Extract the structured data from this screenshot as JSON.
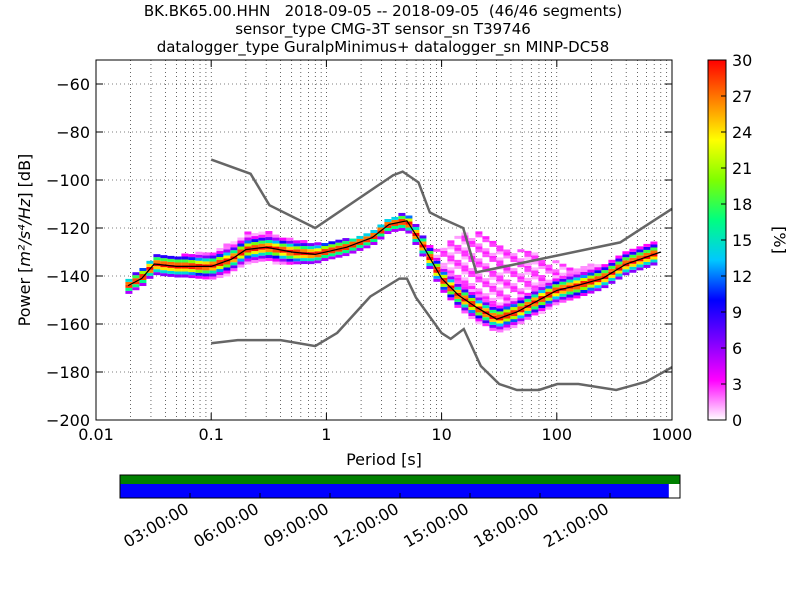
{
  "title": {
    "line1": "BK.BK65.00.HHN   2018-09-05 -- 2018-09-05  (46/46 segments)",
    "line2": "sensor_type CMG-3T sensor_sn T39746",
    "line3": "datalogger_type GuralpMinimus+ datalogger_sn MINP-DC58"
  },
  "chart_data": {
    "type": "heatmap",
    "xlabel": "Period [s]",
    "ylabel_prefix": "Power ",
    "ylabel_unit": "m²/s⁴/Hz",
    "ylabel_suffix": " [dB]",
    "xscale": "log",
    "xlim": [
      0.01,
      1000
    ],
    "ylim": [
      -200,
      -50
    ],
    "xticks": [
      {
        "v": 0.01,
        "label": "0.01"
      },
      {
        "v": 0.1,
        "label": "0.1"
      },
      {
        "v": 1,
        "label": "1"
      },
      {
        "v": 10,
        "label": "10"
      },
      {
        "v": 100,
        "label": "100"
      },
      {
        "v": 1000,
        "label": "1000"
      }
    ],
    "yticks": [
      -60,
      -80,
      -100,
      -120,
      -140,
      -160,
      -180,
      -200
    ],
    "grid": true,
    "colorbar": {
      "label": "[%]",
      "ticks": [
        0,
        3,
        6,
        9,
        12,
        15,
        18,
        21,
        24,
        27,
        30
      ],
      "range": [
        0,
        30
      ],
      "colors": [
        "#ffffff",
        "#ff00ff",
        "#7a00ff",
        "#0000ff",
        "#00c8ff",
        "#00ff80",
        "#7fff00",
        "#ffff00",
        "#ff8000",
        "#ff0000"
      ]
    },
    "nhnm": [
      [
        0.1,
        -91.5
      ],
      [
        0.22,
        -97.4
      ],
      [
        0.32,
        -110.5
      ],
      [
        0.8,
        -120
      ],
      [
        3.8,
        -98
      ],
      [
        4.6,
        -96.5
      ],
      [
        6.3,
        -101
      ],
      [
        7.9,
        -113.5
      ],
      [
        10,
        -116
      ],
      [
        15.4,
        -120
      ],
      [
        20,
        -138.5
      ],
      [
        354.8,
        -126
      ],
      [
        1000,
        -112
      ]
    ],
    "nlnm": [
      [
        0.1,
        -168
      ],
      [
        0.17,
        -166.7
      ],
      [
        0.4,
        -166.7
      ],
      [
        0.8,
        -169.2
      ],
      [
        1.24,
        -163.7
      ],
      [
        2.4,
        -148.6
      ],
      [
        4.3,
        -141.1
      ],
      [
        5,
        -141.1
      ],
      [
        6,
        -149
      ],
      [
        10,
        -163.8
      ],
      [
        12,
        -166.2
      ],
      [
        15.6,
        -162.1
      ],
      [
        21.9,
        -177.5
      ],
      [
        31.6,
        -185
      ],
      [
        45,
        -187.5
      ],
      [
        70,
        -187.5
      ],
      [
        101,
        -185
      ],
      [
        154,
        -185
      ],
      [
        328,
        -187.5
      ],
      [
        600,
        -184
      ],
      [
        1000,
        -178
      ]
    ],
    "mode": [
      [
        0.019,
        -144
      ],
      [
        0.025,
        -141
      ],
      [
        0.032,
        -135
      ],
      [
        0.05,
        -136
      ],
      [
        0.1,
        -136
      ],
      [
        0.15,
        -133
      ],
      [
        0.2,
        -129
      ],
      [
        0.3,
        -128
      ],
      [
        0.5,
        -130
      ],
      [
        0.8,
        -131
      ],
      [
        1.5,
        -128
      ],
      [
        2.5,
        -124
      ],
      [
        3.5,
        -118.5
      ],
      [
        5,
        -117
      ],
      [
        7,
        -128
      ],
      [
        10,
        -141
      ],
      [
        14,
        -148
      ],
      [
        20,
        -153
      ],
      [
        30,
        -158
      ],
      [
        45,
        -155
      ],
      [
        70,
        -150
      ],
      [
        100,
        -146
      ],
      [
        150,
        -144
      ],
      [
        250,
        -141
      ],
      [
        400,
        -135
      ],
      [
        800,
        -130
      ]
    ],
    "spread": [
      {
        "x": 0.019,
        "dn": 2,
        "up": 2
      },
      {
        "x": 0.025,
        "dn": 2,
        "up": 3
      },
      {
        "x": 0.035,
        "dn": 3,
        "up": 3
      },
      {
        "x": 0.06,
        "dn": 3,
        "up": 4
      },
      {
        "x": 0.1,
        "dn": 4,
        "up": 5
      },
      {
        "x": 0.2,
        "dn": 6,
        "up": 7
      },
      {
        "x": 0.35,
        "dn": 5,
        "up": 5
      },
      {
        "x": 0.6,
        "dn": 3,
        "up": 4
      },
      {
        "x": 1,
        "dn": 2,
        "up": 3
      },
      {
        "x": 2,
        "dn": 2,
        "up": 2
      },
      {
        "x": 4,
        "dn": 2,
        "up": 2
      },
      {
        "x": 8,
        "dn": 3,
        "up": 4
      },
      {
        "x": 15,
        "dn": 4,
        "up": 26
      },
      {
        "x": 22,
        "dn": 5,
        "up": 32
      },
      {
        "x": 40,
        "dn": 6,
        "up": 28
      },
      {
        "x": 70,
        "dn": 5,
        "up": 18
      },
      {
        "x": 120,
        "dn": 4,
        "up": 8
      },
      {
        "x": 250,
        "dn": 3,
        "up": 5
      },
      {
        "x": 800,
        "dn": 3,
        "up": 4
      }
    ],
    "timeline": {
      "bar1_color": "#008000",
      "bar2_color": "#0000ff",
      "bar2_fill_fraction": 0.98,
      "ticks": [
        "03:00:00",
        "06:00:00",
        "09:00:00",
        "12:00:00",
        "15:00:00",
        "18:00:00",
        "21:00:00"
      ]
    }
  }
}
